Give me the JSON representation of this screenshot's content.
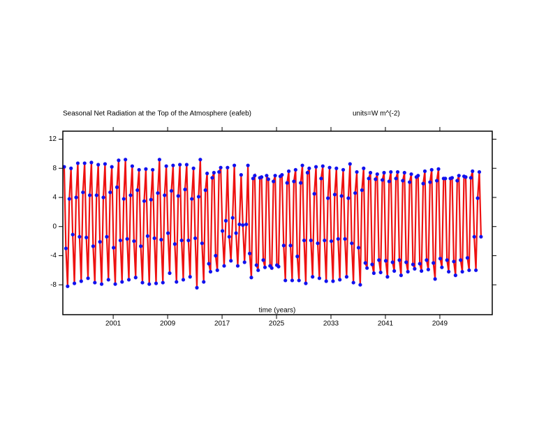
{
  "chart_data": {
    "type": "line",
    "title": "Seasonal Net Radiation at the Top of the Atmosphere (eafeb)",
    "units": "units=W m^(-2)",
    "x_label": "time (years)",
    "xlim": [
      1993.6,
      2056.7
    ],
    "xticks": [
      2001,
      2009,
      2017,
      2025,
      2033,
      2041,
      2049
    ],
    "ylim": [
      -12.1,
      13.1
    ],
    "yticks": [
      -8,
      -4,
      0,
      4,
      8,
      12
    ],
    "x": [
      1993.8,
      1994.05,
      1994.3,
      1994.55,
      1994.8,
      1995.05,
      1995.3,
      1995.55,
      1995.8,
      1996.05,
      1996.3,
      1996.55,
      1996.8,
      1997.05,
      1997.3,
      1997.55,
      1997.8,
      1998.05,
      1998.3,
      1998.55,
      1998.8,
      1999.05,
      1999.3,
      1999.55,
      1999.8,
      2000.05,
      2000.3,
      2000.55,
      2000.8,
      2001.05,
      2001.3,
      2001.55,
      2001.8,
      2002.05,
      2002.3,
      2002.55,
      2002.8,
      2003.05,
      2003.3,
      2003.55,
      2003.8,
      2004.05,
      2004.3,
      2004.55,
      2004.8,
      2005.05,
      2005.3,
      2005.55,
      2005.8,
      2006.05,
      2006.3,
      2006.55,
      2006.8,
      2007.05,
      2007.3,
      2007.55,
      2007.8,
      2008.05,
      2008.3,
      2008.55,
      2008.8,
      2009.05,
      2009.3,
      2009.55,
      2009.8,
      2010.05,
      2010.3,
      2010.55,
      2010.8,
      2011.05,
      2011.3,
      2011.55,
      2011.8,
      2012.05,
      2012.3,
      2012.55,
      2012.8,
      2013.05,
      2013.3,
      2013.55,
      2013.8,
      2014.05,
      2014.3,
      2014.55,
      2014.8,
      2015.05,
      2015.3,
      2015.55,
      2015.8,
      2016.05,
      2016.3,
      2016.55,
      2016.8,
      2017.05,
      2017.3,
      2017.55,
      2017.8,
      2018.05,
      2018.3,
      2018.55,
      2018.8,
      2019.05,
      2019.3,
      2019.55,
      2019.8,
      2020.05,
      2020.3,
      2020.55,
      2020.8,
      2021.05,
      2021.3,
      2021.55,
      2021.8,
      2022.05,
      2022.3,
      2022.55,
      2022.8,
      2023.05,
      2023.3,
      2023.55,
      2023.8,
      2024.05,
      2024.3,
      2024.55,
      2024.8,
      2025.05,
      2025.3,
      2025.55,
      2025.8,
      2026.05,
      2026.3,
      2026.55,
      2026.8,
      2027.05,
      2027.3,
      2027.55,
      2027.8,
      2028.05,
      2028.3,
      2028.55,
      2028.8,
      2029.05,
      2029.3,
      2029.55,
      2029.8,
      2030.05,
      2030.3,
      2030.55,
      2030.8,
      2031.05,
      2031.3,
      2031.55,
      2031.8,
      2032.05,
      2032.3,
      2032.55,
      2032.8,
      2033.05,
      2033.3,
      2033.55,
      2033.8,
      2034.05,
      2034.3,
      2034.55,
      2034.8,
      2035.05,
      2035.3,
      2035.55,
      2035.8,
      2036.05,
      2036.3,
      2036.55,
      2036.8,
      2037.05,
      2037.3,
      2037.55,
      2037.8,
      2038.05,
      2038.3,
      2038.55,
      2038.8,
      2039.05,
      2039.3,
      2039.55,
      2039.8,
      2040.05,
      2040.3,
      2040.55,
      2040.8,
      2041.05,
      2041.3,
      2041.55,
      2041.8,
      2042.05,
      2042.3,
      2042.55,
      2042.8,
      2043.05,
      2043.3,
      2043.55,
      2043.8,
      2044.05,
      2044.3,
      2044.55,
      2044.8,
      2045.05,
      2045.3,
      2045.55,
      2045.8,
      2046.05,
      2046.3,
      2046.55,
      2046.8,
      2047.05,
      2047.3,
      2047.55,
      2047.8,
      2048.05,
      2048.3,
      2048.55,
      2048.8,
      2049.05,
      2049.3,
      2049.55,
      2049.8,
      2050.05,
      2050.3,
      2050.55,
      2050.8,
      2051.05,
      2051.3,
      2051.55,
      2051.8,
      2052.05,
      2052.3,
      2052.55,
      2052.8,
      2053.05,
      2053.3,
      2053.55,
      2053.8,
      2054.05,
      2054.3,
      2054.55,
      2054.8,
      2055.05
    ],
    "series": [
      {
        "color": "#ee1111",
        "marker_color": "#1111ee",
        "values": [
          8.2,
          -3,
          -8.2,
          3.8,
          8.0,
          -1.1,
          -7.8,
          4.0,
          8.7,
          -1.4,
          -7.5,
          4.7,
          8.7,
          -1.5,
          -7.1,
          4.3,
          8.8,
          -2.7,
          -7.7,
          4.3,
          8.5,
          -2.1,
          -7.9,
          4.0,
          8.6,
          -1.4,
          -7.3,
          4.7,
          8.2,
          -2.9,
          -7.9,
          5.4,
          9.1,
          -1.9,
          -7.6,
          3.8,
          9.2,
          -1.7,
          -7.3,
          4.3,
          8.3,
          -2.0,
          -7.0,
          5.0,
          7.8,
          -2.7,
          -7.7,
          3.5,
          7.9,
          -1.3,
          -7.9,
          3.7,
          7.8,
          -1.6,
          -7.8,
          4.6,
          9.2,
          -1.8,
          -7.7,
          4.3,
          8.3,
          -0.9,
          -6.4,
          4.9,
          8.4,
          -2.4,
          -7.6,
          4.2,
          8.5,
          -1.9,
          -7.3,
          5.1,
          8.5,
          -1.9,
          -6.9,
          3.8,
          8.0,
          -1.6,
          -8.4,
          4.1,
          9.2,
          -2.3,
          -7.6,
          5.0,
          7.3,
          -5.1,
          -6.2,
          6.7,
          7.4,
          -4.0,
          -6.0,
          7.5,
          8.1,
          -0.6,
          -5.4,
          0.8,
          8.1,
          -1.4,
          -4.7,
          1.2,
          8.4,
          -0.9,
          -5.4,
          0.3,
          7.1,
          0.2,
          -4.9,
          0.3,
          8.4,
          -3.7,
          -7.0,
          6.6,
          7.0,
          -5.3,
          -6.0,
          6.7,
          6.8,
          -4.6,
          -5.6,
          7.0,
          6.5,
          -5.4,
          -5.7,
          6.2,
          7.0,
          -5.3,
          -5.5,
          6.9,
          7.1,
          -2.6,
          -7.4,
          6.0,
          7.6,
          -2.6,
          -7.4,
          6.2,
          7.8,
          -4.1,
          -7.4,
          6.0,
          8.4,
          -1.9,
          -7.8,
          7.4,
          8.0,
          -1.9,
          -6.9,
          4.5,
          8.2,
          -2.3,
          -7.1,
          6.6,
          8.3,
          -1.9,
          -7.5,
          3.9,
          8.1,
          -2.0,
          -7.5,
          4.4,
          8.0,
          -1.7,
          -7.3,
          4.2,
          7.8,
          -1.7,
          -6.9,
          3.9,
          8.6,
          -2.3,
          -7.7,
          4.6,
          7.5,
          -2.9,
          -8.0,
          5.0,
          8.0,
          -5.0,
          -5.7,
          6.6,
          7.4,
          -5.2,
          -6.4,
          6.5,
          7.2,
          -4.6,
          -6.3,
          6.4,
          7.4,
          -4.7,
          -6.9,
          6.2,
          7.5,
          -4.9,
          -6.1,
          6.6,
          7.5,
          -4.6,
          -6.7,
          6.3,
          7.4,
          -4.9,
          -6.2,
          6.1,
          7.2,
          -5.2,
          -5.8,
          6.8,
          7.0,
          -5.1,
          -6.1,
          5.9,
          7.6,
          -4.6,
          -5.9,
          6.1,
          7.8,
          -5.0,
          -7.2,
          6.3,
          7.9,
          -4.4,
          -5.6,
          6.6,
          6.6,
          -4.6,
          -6.2,
          6.6,
          6.7,
          -4.8,
          -6.7,
          6.3,
          7.0,
          -4.6,
          -6.2,
          6.9,
          6.8,
          -4.3,
          -6.0,
          6.7,
          7.6,
          -1.4,
          -6.0,
          3.9,
          7.5,
          -1.4
        ]
      }
    ]
  }
}
